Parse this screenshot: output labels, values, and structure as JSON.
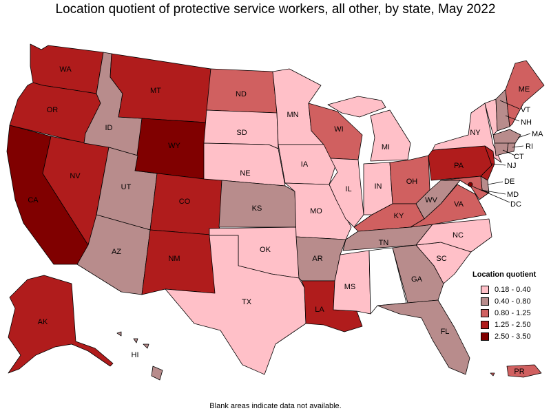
{
  "title": "Location quotient of protective service workers, all other, by state, May 2022",
  "footnote": "Blank areas indicate data not available.",
  "legend": {
    "title": "Location quotient",
    "items": [
      {
        "label": "0.18 - 0.40",
        "color": "#ffc0c8"
      },
      {
        "label": "0.40 - 0.80",
        "color": "#b88c8c"
      },
      {
        "label": "0.80 - 1.25",
        "color": "#d06060"
      },
      {
        "label": "1.25 - 2.50",
        "color": "#b01c1c"
      },
      {
        "label": "2.50 - 3.50",
        "color": "#800000"
      }
    ]
  },
  "map_data": {
    "missing_color": "#ffffff",
    "states": {
      "WA": "1.25 - 2.50",
      "OR": "1.25 - 2.50",
      "CA": "2.50 - 3.50",
      "NV": "1.25 - 2.50",
      "ID": "0.40 - 0.80",
      "MT": "1.25 - 2.50",
      "WY": "2.50 - 3.50",
      "UT": "0.40 - 0.80",
      "AZ": "0.40 - 0.80",
      "CO": "1.25 - 2.50",
      "NM": "1.25 - 2.50",
      "ND": "0.80 - 1.25",
      "SD": "0.18 - 0.40",
      "NE": "0.18 - 0.40",
      "KS": "0.40 - 0.80",
      "OK": "0.18 - 0.40",
      "TX": "0.18 - 0.40",
      "MN": "0.18 - 0.40",
      "IA": "0.18 - 0.40",
      "MO": "0.18 - 0.40",
      "AR": "0.40 - 0.80",
      "LA": "1.25 - 2.50",
      "WI": "0.80 - 1.25",
      "IL": "0.18 - 0.40",
      "MI": "0.18 - 0.40",
      "IN": "0.18 - 0.40",
      "OH": "0.80 - 1.25",
      "KY": "0.80 - 1.25",
      "TN": "0.40 - 0.80",
      "MS": "0.18 - 0.40",
      "AL": null,
      "GA": "0.40 - 0.80",
      "FL": "0.40 - 0.80",
      "SC": "0.18 - 0.40",
      "NC": "0.18 - 0.40",
      "VA": "0.80 - 1.25",
      "WV": "0.40 - 0.80",
      "PA": "1.25 - 2.50",
      "NY": "0.18 - 0.40",
      "VT": "0.18 - 0.40",
      "NH": "0.40 - 0.80",
      "ME": "0.80 - 1.25",
      "MA": "0.40 - 0.80",
      "RI": "0.40 - 0.80",
      "CT": "0.40 - 0.80",
      "NJ": "1.25 - 2.50",
      "DE": "0.40 - 0.80",
      "MD": "0.80 - 1.25",
      "DC": "2.50 - 3.50",
      "AK": "1.25 - 2.50",
      "HI": "0.40 - 0.80",
      "PR": "0.80 - 1.25"
    }
  },
  "labels": {
    "WA": "WA",
    "OR": "OR",
    "CA": "CA",
    "NV": "NV",
    "ID": "ID",
    "MT": "MT",
    "WY": "WY",
    "UT": "UT",
    "AZ": "AZ",
    "CO": "CO",
    "NM": "NM",
    "ND": "ND",
    "SD": "SD",
    "NE": "NE",
    "KS": "KS",
    "OK": "OK",
    "TX": "TX",
    "MN": "MN",
    "IA": "IA",
    "MO": "MO",
    "AR": "AR",
    "LA": "LA",
    "WI": "WI",
    "IL": "IL",
    "MI": "MI",
    "IN": "IN",
    "OH": "OH",
    "KY": "KY",
    "TN": "TN",
    "MS": "MS",
    "GA": "GA",
    "FL": "FL",
    "SC": "SC",
    "NC": "NC",
    "VA": "VA",
    "WV": "WV",
    "PA": "PA",
    "NY": "NY",
    "VT": "VT",
    "NH": "NH",
    "ME": "ME",
    "MA": "MA",
    "RI": "RI",
    "CT": "CT",
    "NJ": "NJ",
    "DE": "DE",
    "MD": "MD",
    "DC": "DC",
    "AK": "AK",
    "HI": "HI",
    "PR": "PR"
  }
}
